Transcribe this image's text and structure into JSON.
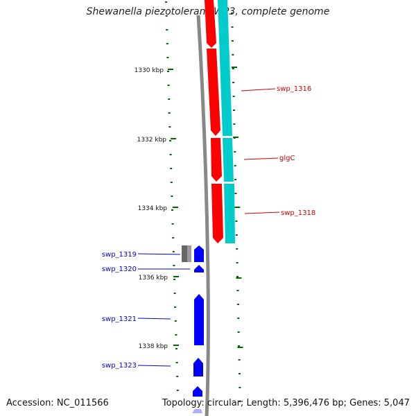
{
  "title": "Shewanella piezotolerans WP3, complete genome",
  "footer": {
    "accession": "Accession: NC_011566",
    "summary": "Topology: circular; Length: 5,396,476 bp; Genes: 5,047"
  },
  "colors": {
    "forward_cds": "#ff0000",
    "forward_track": "#00cccc",
    "reverse_cds": "#0000ff",
    "other_feature": "#666666",
    "backbone": "#888888",
    "tick": "#006600",
    "forward_label": "#cc0000",
    "reverse_label": "#0000cc"
  },
  "scale": {
    "tick_labels": [
      {
        "kbp": 1330,
        "label": "1330 kbp"
      },
      {
        "kbp": 1332,
        "label": "1332 kbp"
      },
      {
        "kbp": 1334,
        "label": "1334 kbp"
      },
      {
        "kbp": 1336,
        "label": "1336 kbp"
      },
      {
        "kbp": 1338,
        "label": "1338 kbp"
      }
    ]
  },
  "genes_forward": [
    {
      "label": "swp_1316"
    },
    {
      "label": "glgC"
    },
    {
      "label": "swp_1318"
    }
  ],
  "genes_reverse": [
    {
      "label": "swp_1319"
    },
    {
      "label": "swp_1320"
    },
    {
      "label": "swp_1321"
    },
    {
      "label": "swp_1323"
    }
  ]
}
